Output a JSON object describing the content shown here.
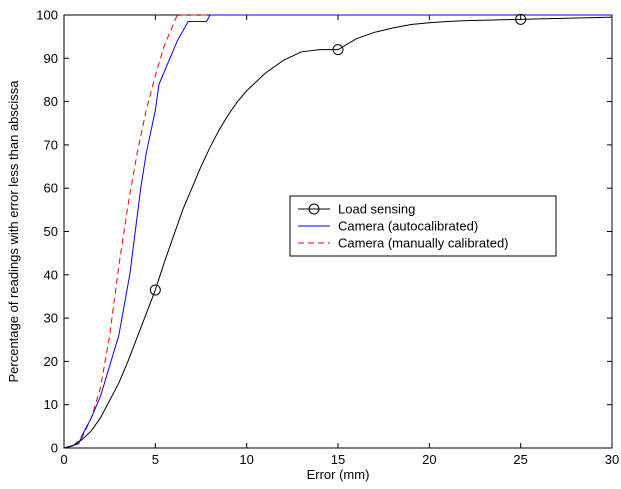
{
  "chart_data": {
    "type": "line",
    "xlabel": "Error (mm)",
    "ylabel": "Percentage of readings with error less than abscissa",
    "xlim": [
      0,
      30
    ],
    "ylim": [
      0,
      100
    ],
    "xticks": [
      0,
      5,
      10,
      15,
      20,
      25,
      30
    ],
    "yticks": [
      0,
      10,
      20,
      30,
      40,
      50,
      60,
      70,
      80,
      90,
      100
    ],
    "grid": false,
    "legend_position": "center-right",
    "series": [
      {
        "name": "Load sensing",
        "color": "#000000",
        "style": "solid",
        "marker": "circle",
        "marker_x": [
          5,
          15,
          25
        ],
        "x": [
          0,
          0.5,
          1,
          1.5,
          2,
          2.5,
          3,
          3.5,
          4,
          4.5,
          5,
          5.5,
          6,
          6.5,
          7,
          7.5,
          8,
          8.5,
          9,
          9.5,
          10,
          11,
          12,
          13,
          14,
          15,
          16,
          17,
          18,
          19,
          20,
          21,
          22,
          23,
          24,
          25,
          26,
          27,
          28,
          29,
          30
        ],
        "y": [
          0,
          0.5,
          2,
          4,
          7,
          11,
          15,
          20,
          25.5,
          31,
          36.5,
          43,
          49,
          55,
          60,
          65,
          69.5,
          73.5,
          77,
          80,
          82.5,
          86.5,
          89.5,
          91.5,
          92,
          92,
          94.5,
          96,
          97,
          97.8,
          98.2,
          98.5,
          98.7,
          98.8,
          98.9,
          99,
          99.1,
          99.2,
          99.3,
          99.4,
          99.5
        ]
      },
      {
        "name": "Camera (autocalibrated)",
        "color": "#0000ff",
        "style": "solid",
        "marker": "none",
        "x": [
          0,
          0.8,
          1,
          1.5,
          2,
          2.5,
          3,
          3.3,
          3.6,
          3.9,
          4.2,
          4.5,
          4.8,
          5,
          5.2,
          5.4,
          5.6,
          5.8,
          6,
          6.2,
          6.4,
          6.6,
          6.8,
          7,
          7.2,
          7.5,
          7.8,
          8,
          30
        ],
        "y": [
          0,
          1,
          3,
          7,
          12,
          19,
          26,
          33,
          40,
          50,
          60,
          68,
          74,
          78,
          84,
          86,
          88,
          90,
          92,
          94,
          95.5,
          97,
          98.5,
          98.5,
          98.5,
          98.5,
          98.5,
          100,
          100
        ]
      },
      {
        "name": "Camera (manually calibrated)",
        "color": "#ff0000",
        "style": "dashed",
        "marker": "none",
        "x": [
          0,
          0.5,
          1,
          1.5,
          2,
          2.5,
          3,
          3.5,
          4,
          4.5,
          5,
          5.5,
          6,
          6.2,
          6.5,
          7,
          30
        ],
        "y": [
          0,
          0.5,
          2.5,
          7,
          14,
          26,
          42,
          56,
          68,
          78,
          86,
          93,
          98,
          100,
          100,
          100,
          100
        ]
      }
    ]
  }
}
